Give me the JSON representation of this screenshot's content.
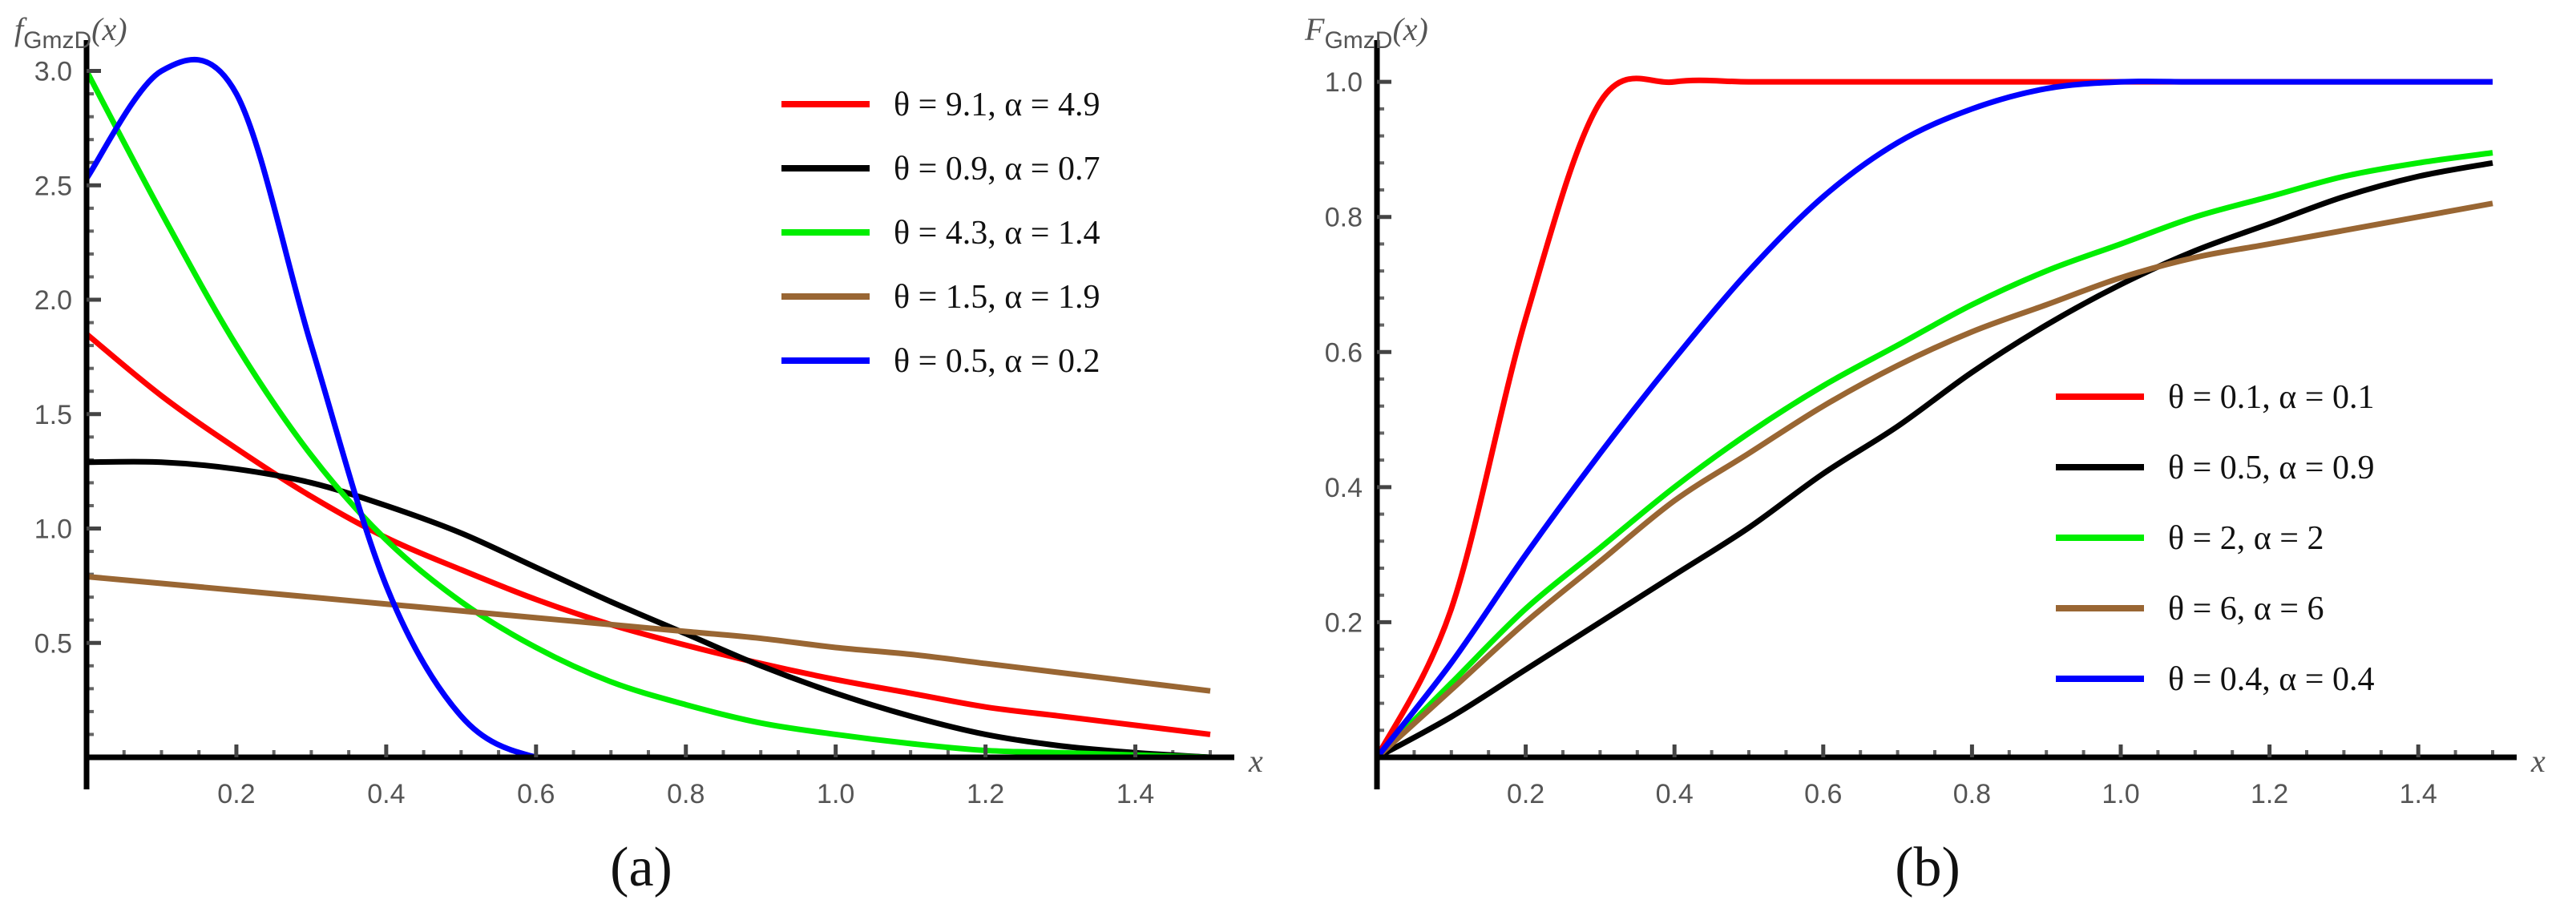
{
  "chart_data": [
    {
      "type": "line",
      "panel_label": "(a)",
      "ylabel_main": "f",
      "ylabel_sub": "GmzD",
      "ylabel_arg": "(x)",
      "xlabel": "x",
      "xlim": [
        0,
        1.5
      ],
      "ylim": [
        0,
        3.1
      ],
      "xticks": [
        "0.2",
        "0.4",
        "0.6",
        "0.8",
        "1.0",
        "1.2",
        "1.4"
      ],
      "xtick_values": [
        0.2,
        0.4,
        0.6,
        0.8,
        1.0,
        1.2,
        1.4
      ],
      "yticks": [
        "0.5",
        "1.0",
        "1.5",
        "2.0",
        "2.5",
        "3.0"
      ],
      "ytick_values": [
        0.5,
        1.0,
        1.5,
        2.0,
        2.5,
        3.0
      ],
      "legend": "top-right",
      "x": [
        0,
        0.1,
        0.2,
        0.3,
        0.4,
        0.5,
        0.6,
        0.7,
        0.8,
        0.9,
        1.0,
        1.1,
        1.2,
        1.3,
        1.4,
        1.5
      ],
      "series": [
        {
          "name": "θ = 9.1, α = 4.9",
          "color": "#ff0000",
          "values": [
            1.85,
            1.58,
            1.35,
            1.14,
            0.96,
            0.82,
            0.69,
            0.58,
            0.49,
            0.41,
            0.34,
            0.28,
            0.22,
            0.18,
            0.14,
            0.1
          ]
        },
        {
          "name": "θ = 0.9, α = 0.7",
          "color": "#000000",
          "values": [
            1.29,
            1.29,
            1.26,
            1.2,
            1.1,
            0.98,
            0.83,
            0.68,
            0.54,
            0.4,
            0.28,
            0.18,
            0.1,
            0.05,
            0.02,
            0.0
          ]
        },
        {
          "name": "θ = 4.3, α = 1.4",
          "color": "#00ee00",
          "values": [
            3.0,
            2.38,
            1.8,
            1.32,
            0.95,
            0.68,
            0.48,
            0.33,
            0.23,
            0.15,
            0.1,
            0.06,
            0.03,
            0.02,
            0.01,
            0.0
          ]
        },
        {
          "name": "θ = 1.5, α = 1.9",
          "color": "#996633",
          "values": [
            0.79,
            0.76,
            0.73,
            0.7,
            0.67,
            0.64,
            0.61,
            0.58,
            0.55,
            0.52,
            0.48,
            0.45,
            0.41,
            0.37,
            0.33,
            0.29
          ]
        },
        {
          "name": "θ = 0.5, α = 0.2",
          "color": "#0000ff",
          "values": [
            2.53,
            3.0,
            2.9,
            1.8,
            0.75,
            0.18,
            0.0,
            0.0,
            0.0,
            0.0,
            0.0,
            0.0,
            0.0,
            0.0,
            0.0,
            0.0
          ]
        }
      ]
    },
    {
      "type": "line",
      "panel_label": "(b)",
      "ylabel_main": "F",
      "ylabel_sub": "GmzD",
      "ylabel_arg": "(x)",
      "xlabel": "x",
      "xlim": [
        0,
        1.5
      ],
      "ylim": [
        0,
        1.05
      ],
      "xticks": [
        "0.2",
        "0.4",
        "0.6",
        "0.8",
        "1.0",
        "1.2",
        "1.4"
      ],
      "xtick_values": [
        0.2,
        0.4,
        0.6,
        0.8,
        1.0,
        1.2,
        1.4
      ],
      "yticks": [
        "0.2",
        "0.4",
        "0.6",
        "0.8",
        "1.0"
      ],
      "ytick_values": [
        0.2,
        0.4,
        0.6,
        0.8,
        1.0
      ],
      "legend": "center-right",
      "x": [
        0,
        0.1,
        0.2,
        0.3,
        0.4,
        0.5,
        0.6,
        0.7,
        0.8,
        0.9,
        1.0,
        1.1,
        1.2,
        1.3,
        1.4,
        1.5
      ],
      "series": [
        {
          "name": "θ = 0.1, α = 0.1",
          "color": "#ff0000",
          "values": [
            0.0,
            0.22,
            0.65,
            0.97,
            1.0,
            1.0,
            1.0,
            1.0,
            1.0,
            1.0,
            1.0,
            1.0,
            1.0,
            1.0,
            1.0,
            1.0
          ]
        },
        {
          "name": "θ = 0.5, α = 0.9",
          "color": "#000000",
          "values": [
            0.0,
            0.06,
            0.13,
            0.2,
            0.27,
            0.34,
            0.42,
            0.49,
            0.57,
            0.64,
            0.7,
            0.75,
            0.79,
            0.83,
            0.86,
            0.88
          ]
        },
        {
          "name": "θ = 2, α = 2",
          "color": "#00ee00",
          "values": [
            0.0,
            0.11,
            0.22,
            0.31,
            0.4,
            0.48,
            0.55,
            0.61,
            0.67,
            0.72,
            0.76,
            0.8,
            0.83,
            0.86,
            0.88,
            0.895
          ]
        },
        {
          "name": "θ = 6, α = 6",
          "color": "#996633",
          "values": [
            0.0,
            0.1,
            0.2,
            0.29,
            0.38,
            0.45,
            0.52,
            0.58,
            0.63,
            0.67,
            0.71,
            0.74,
            0.76,
            0.78,
            0.8,
            0.82
          ]
        },
        {
          "name": "θ = 0.4, α = 0.4",
          "color": "#0000ff",
          "values": [
            0.0,
            0.14,
            0.3,
            0.45,
            0.59,
            0.72,
            0.83,
            0.91,
            0.96,
            0.99,
            1.0,
            1.0,
            1.0,
            1.0,
            1.0,
            1.0
          ]
        }
      ]
    }
  ]
}
